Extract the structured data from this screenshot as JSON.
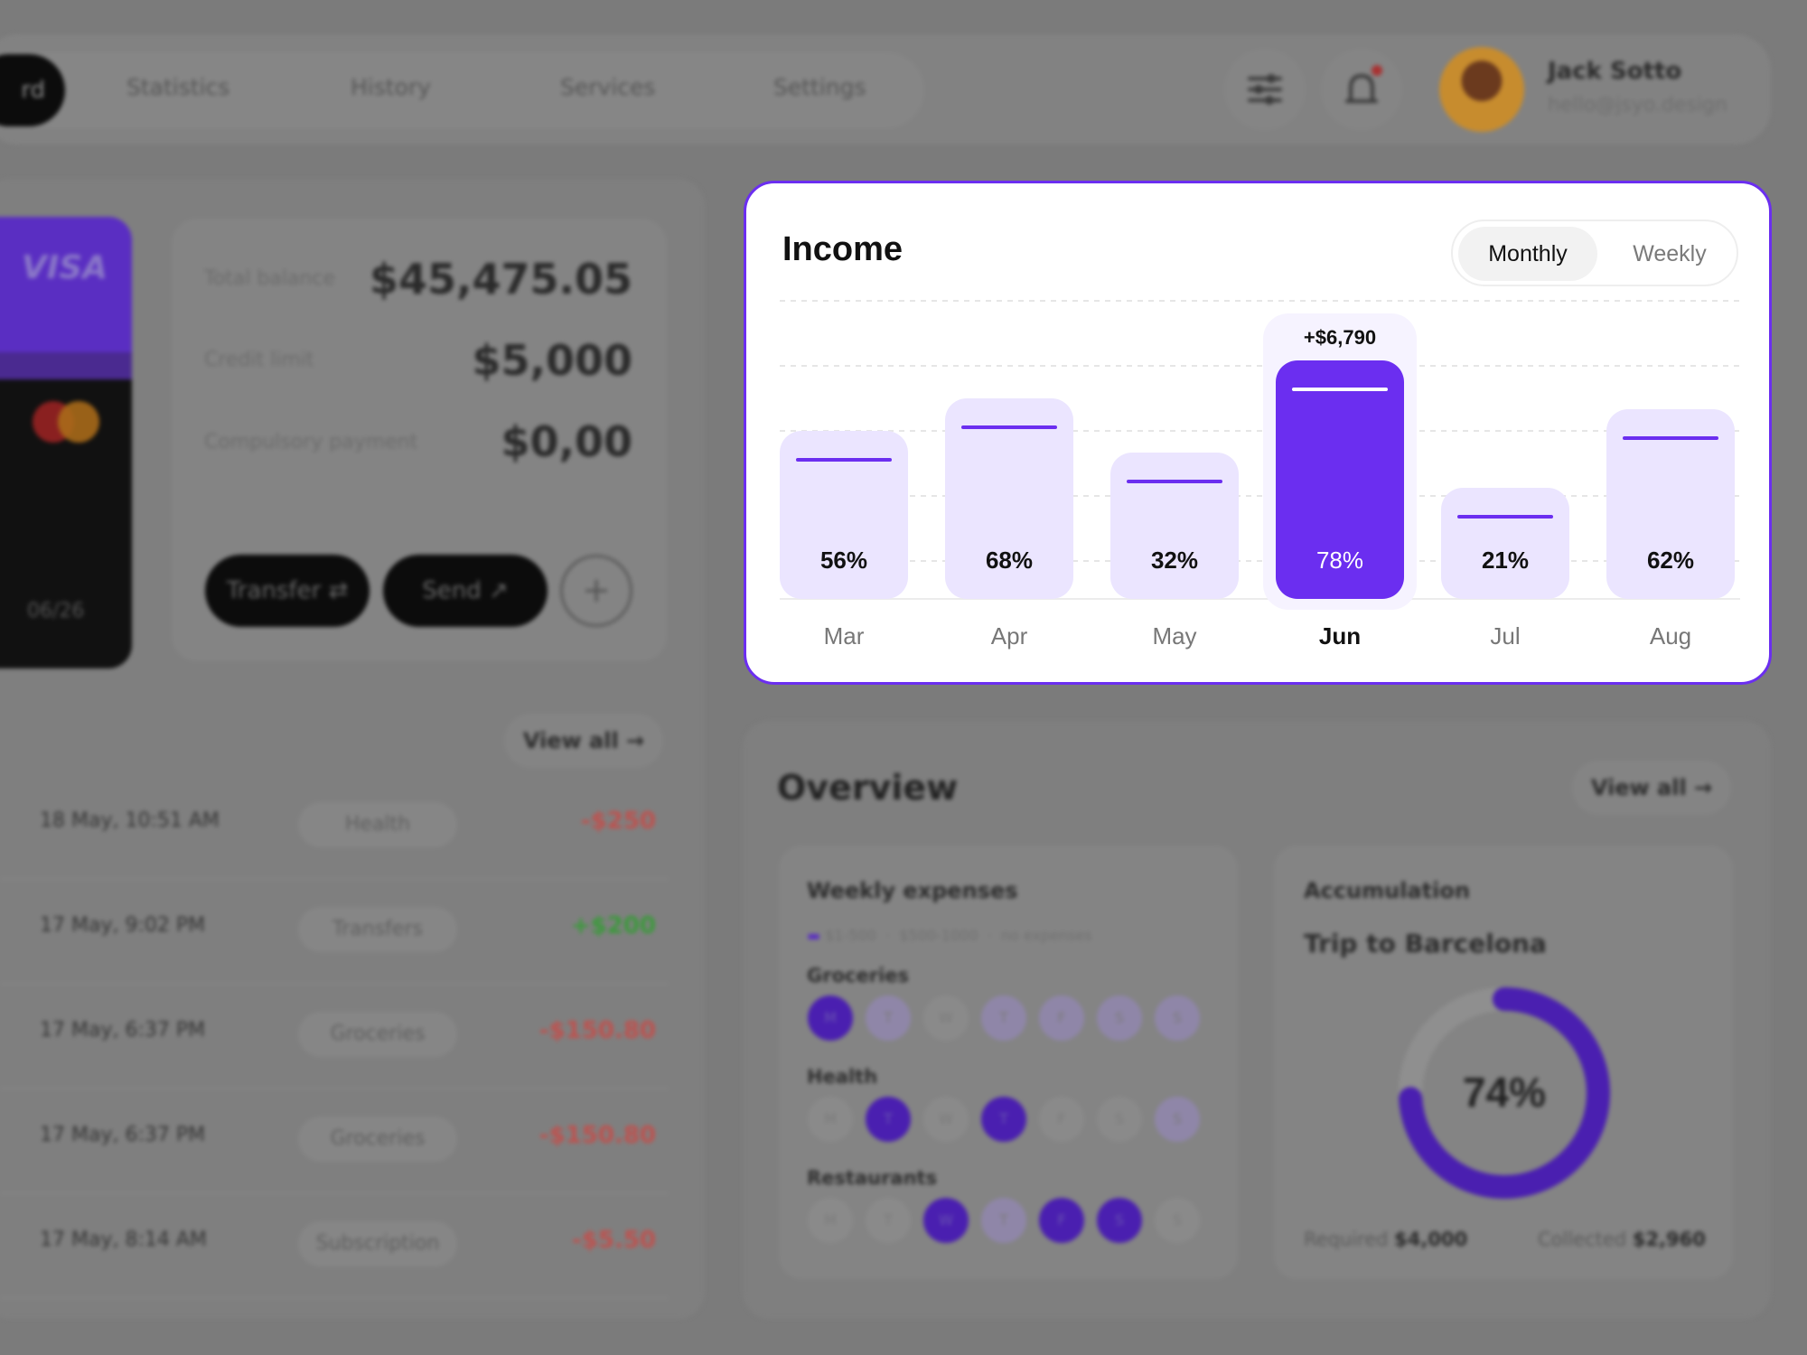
{
  "nav": {
    "active_label": "rd",
    "items": [
      "Statistics",
      "History",
      "Services",
      "Settings"
    ]
  },
  "user": {
    "name": "Jack Sotto",
    "email": "hello@jsyo.design"
  },
  "card": {
    "brand": "VISA",
    "expiry": "06/26"
  },
  "balance": {
    "rows": [
      {
        "label": "Total balance",
        "value": "$45,475.05"
      },
      {
        "label": "Credit limit",
        "value": "$5,000"
      },
      {
        "label": "Compulsory payment",
        "value": "$0,00"
      }
    ],
    "transfer_label": "Transfer",
    "send_label": "Send",
    "add_label": "+"
  },
  "transactions": {
    "view_all_label": "View all",
    "rows": [
      {
        "date": "18 May, 10:51 AM",
        "category": "Health",
        "amount": "-$250",
        "color": "#c0504d"
      },
      {
        "date": "17 May, 9:02 PM",
        "category": "Transfers",
        "amount": "+$200",
        "color": "#3a9a3a"
      },
      {
        "date": "17 May, 6:37 PM",
        "category": "Groceries",
        "amount": "-$150.80",
        "color": "#c0504d"
      },
      {
        "date": "17 May, 6:37 PM",
        "category": "Groceries",
        "amount": "-$150.80",
        "color": "#c0504d"
      },
      {
        "date": "17 May, 8:14 AM",
        "category": "Subscription",
        "amount": "-$5.50",
        "color": "#c0504d"
      }
    ]
  },
  "income": {
    "title": "Income",
    "toggle_active": "Monthly",
    "toggle_inactive": "Weekly",
    "accent": "#6b2ef0"
  },
  "chart_data": {
    "type": "bar",
    "categories": [
      "Mar",
      "Apr",
      "May",
      "Jun",
      "Jul",
      "Aug"
    ],
    "values": [
      56,
      68,
      32,
      78,
      21,
      62
    ],
    "unit": "%",
    "bar_heights": [
      0.62,
      0.74,
      0.54,
      0.88,
      0.41,
      0.7
    ],
    "highlight_index": 3,
    "highlight_label": "+$6,790",
    "grid": true
  },
  "overview": {
    "title": "Overview",
    "view_all_label": "View all",
    "weekly": {
      "title": "Weekly expenses",
      "legend": [
        "$1-500",
        "$500-1000",
        "no expenses"
      ],
      "days": [
        "M",
        "T",
        "W",
        "T",
        "F",
        "S",
        "S"
      ],
      "categories": [
        {
          "name": "Groceries",
          "levels": [
            2,
            1,
            0,
            1,
            1,
            1,
            1
          ]
        },
        {
          "name": "Health",
          "levels": [
            0,
            2,
            0,
            2,
            0,
            0,
            1
          ]
        },
        {
          "name": "Restaurants",
          "levels": [
            0,
            0,
            2,
            1,
            2,
            2,
            0
          ]
        }
      ]
    },
    "accumulation": {
      "title": "Accumulation",
      "goal": "Trip to Barcelona",
      "percent": 74,
      "percent_label": "74%",
      "required_label": "Required",
      "required_value": "$4,000",
      "collected_label": "Collected",
      "collected_value": "$2,960"
    }
  }
}
